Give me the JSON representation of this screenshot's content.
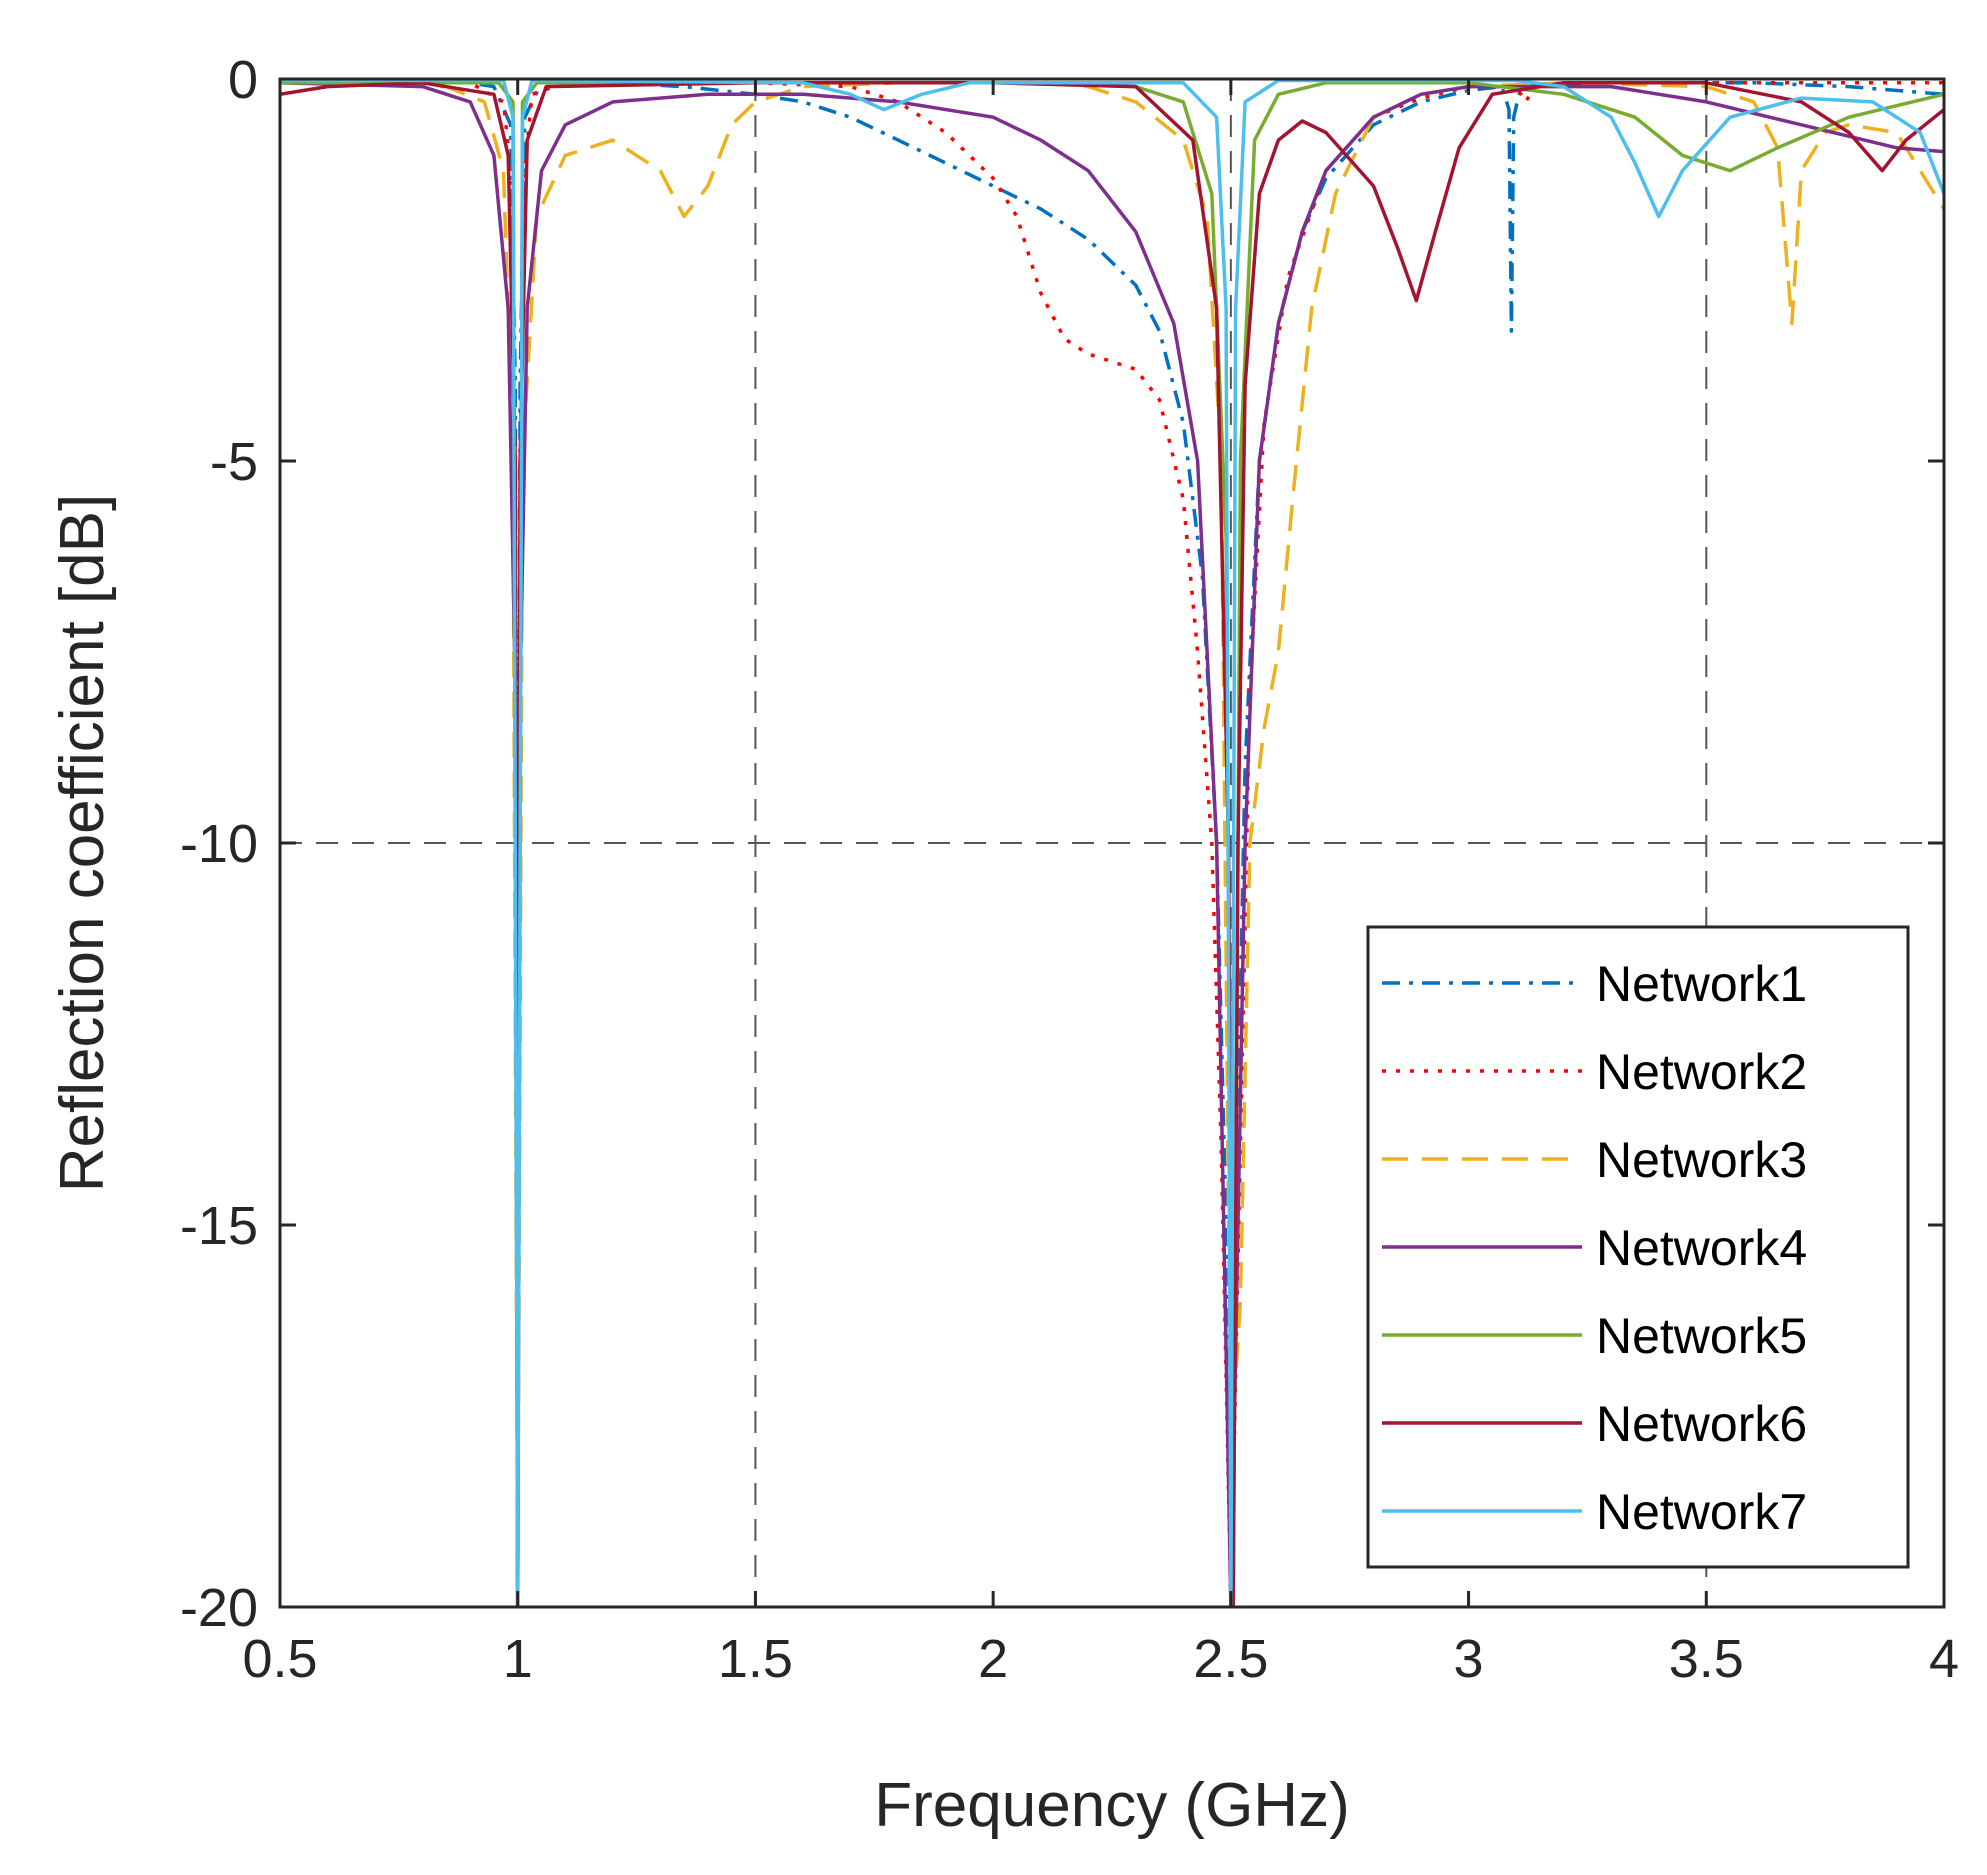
{
  "chart_data": {
    "type": "line",
    "xlabel": "Frequency (GHz)",
    "ylabel": "Reflection coefficient [dB]",
    "xlim": [
      0.5,
      4
    ],
    "ylim": [
      -20,
      0
    ],
    "x_ticks": [
      0.5,
      1,
      1.5,
      2,
      2.5,
      3,
      3.5,
      4
    ],
    "x_tick_labels": [
      "0.5",
      "1",
      "1.5",
      "2",
      "2.5",
      "3",
      "3.5",
      "4"
    ],
    "y_ticks": [
      0,
      -5,
      -10,
      -15,
      -20
    ],
    "y_tick_labels": [
      "0",
      "-5",
      "-10",
      "-15",
      "-20"
    ],
    "reference_lines": [
      {
        "axis": "y",
        "value": -10,
        "style": "dashed",
        "color": "#555555"
      },
      {
        "axis": "x",
        "value": 1.5,
        "style": "dashed",
        "color": "#555555"
      },
      {
        "axis": "x",
        "value": 2.5,
        "style": "dashed",
        "color": "#555555"
      },
      {
        "axis": "x",
        "value": 3.5,
        "style": "dashed",
        "color": "#555555"
      }
    ],
    "legend": {
      "position": "bottom-right"
    },
    "series": [
      {
        "name": "Network1",
        "color": "#0072BD",
        "dash": "dashdot",
        "points": [
          [
            0.5,
            -0.05
          ],
          [
            0.9,
            -0.05
          ],
          [
            0.95,
            -0.1
          ],
          [
            0.985,
            -0.6
          ],
          [
            0.995,
            -4
          ],
          [
            1.0,
            -18
          ],
          [
            1.005,
            -4
          ],
          [
            1.015,
            -0.5
          ],
          [
            1.05,
            -0.05
          ],
          [
            1.2,
            -0.05
          ],
          [
            1.35,
            -0.1
          ],
          [
            1.5,
            -0.2
          ],
          [
            1.6,
            -0.3
          ],
          [
            1.7,
            -0.5
          ],
          [
            1.8,
            -0.8
          ],
          [
            1.9,
            -1.1
          ],
          [
            2.0,
            -1.4
          ],
          [
            2.1,
            -1.7
          ],
          [
            2.2,
            -2.1
          ],
          [
            2.3,
            -2.7
          ],
          [
            2.35,
            -3.3
          ],
          [
            2.4,
            -4.5
          ],
          [
            2.44,
            -6.5
          ],
          [
            2.47,
            -10
          ],
          [
            2.49,
            -15
          ],
          [
            2.5,
            -20
          ],
          [
            2.51,
            -15
          ],
          [
            2.53,
            -9
          ],
          [
            2.56,
            -5
          ],
          [
            2.6,
            -3.2
          ],
          [
            2.65,
            -2.0
          ],
          [
            2.7,
            -1.3
          ],
          [
            2.8,
            -0.6
          ],
          [
            2.9,
            -0.3
          ],
          [
            3.0,
            -0.15
          ],
          [
            3.07,
            -0.1
          ],
          [
            3.085,
            -0.4
          ],
          [
            3.09,
            -3.3
          ],
          [
            3.095,
            -0.5
          ],
          [
            3.11,
            -0.1
          ],
          [
            3.3,
            -0.05
          ],
          [
            3.6,
            -0.05
          ],
          [
            3.8,
            -0.1
          ],
          [
            4.0,
            -0.2
          ]
        ]
      },
      {
        "name": "Network2",
        "color": "#FF0000",
        "dash": "dotted",
        "points": [
          [
            0.5,
            -0.05
          ],
          [
            0.9,
            -0.05
          ],
          [
            0.97,
            -0.3
          ],
          [
            0.99,
            -1.5
          ],
          [
            0.997,
            -8
          ],
          [
            1.0,
            -20
          ],
          [
            1.003,
            -8
          ],
          [
            1.01,
            -1.5
          ],
          [
            1.03,
            -0.2
          ],
          [
            1.1,
            -0.05
          ],
          [
            1.5,
            -0.05
          ],
          [
            1.7,
            -0.1
          ],
          [
            1.8,
            -0.3
          ],
          [
            1.9,
            -0.7
          ],
          [
            2.0,
            -1.3
          ],
          [
            2.05,
            -1.8
          ],
          [
            2.1,
            -2.8
          ],
          [
            2.15,
            -3.4
          ],
          [
            2.2,
            -3.6
          ],
          [
            2.3,
            -3.8
          ],
          [
            2.35,
            -4.2
          ],
          [
            2.4,
            -5.5
          ],
          [
            2.43,
            -7.5
          ],
          [
            2.46,
            -10
          ],
          [
            2.48,
            -14
          ],
          [
            2.5,
            -20
          ],
          [
            2.52,
            -14
          ],
          [
            2.54,
            -8
          ],
          [
            2.57,
            -4.5
          ],
          [
            2.62,
            -2.6
          ],
          [
            2.7,
            -1.2
          ],
          [
            2.8,
            -0.5
          ],
          [
            2.9,
            -0.25
          ],
          [
            3.0,
            -0.1
          ],
          [
            3.1,
            -0.1
          ],
          [
            3.12,
            -0.3
          ],
          [
            3.14,
            -0.1
          ],
          [
            3.3,
            -0.05
          ],
          [
            3.6,
            -0.05
          ],
          [
            4.0,
            -0.05
          ]
        ]
      },
      {
        "name": "Network3",
        "color": "#EDB120",
        "dash": "dashed",
        "points": [
          [
            0.5,
            -0.05
          ],
          [
            0.85,
            -0.1
          ],
          [
            0.93,
            -0.3
          ],
          [
            0.97,
            -1.2
          ],
          [
            0.99,
            -5
          ],
          [
            1.0,
            -20
          ],
          [
            1.01,
            -5
          ],
          [
            1.04,
            -1.8
          ],
          [
            1.1,
            -1.0
          ],
          [
            1.2,
            -0.8
          ],
          [
            1.3,
            -1.2
          ],
          [
            1.35,
            -1.8
          ],
          [
            1.4,
            -1.4
          ],
          [
            1.45,
            -0.6
          ],
          [
            1.5,
            -0.3
          ],
          [
            1.6,
            -0.1
          ],
          [
            1.8,
            -0.05
          ],
          [
            2.1,
            -0.05
          ],
          [
            2.2,
            -0.1
          ],
          [
            2.3,
            -0.3
          ],
          [
            2.4,
            -0.8
          ],
          [
            2.45,
            -1.8
          ],
          [
            2.48,
            -5
          ],
          [
            2.5,
            -18
          ],
          [
            2.52,
            -16
          ],
          [
            2.54,
            -10
          ],
          [
            2.57,
            -8.5
          ],
          [
            2.6,
            -7.5
          ],
          [
            2.63,
            -5.5
          ],
          [
            2.67,
            -3
          ],
          [
            2.72,
            -1.5
          ],
          [
            2.8,
            -0.5
          ],
          [
            2.9,
            -0.2
          ],
          [
            3.0,
            -0.1
          ],
          [
            3.2,
            -0.05
          ],
          [
            3.5,
            -0.1
          ],
          [
            3.6,
            -0.3
          ],
          [
            3.65,
            -0.9
          ],
          [
            3.68,
            -3.2
          ],
          [
            3.7,
            -1.2
          ],
          [
            3.75,
            -0.7
          ],
          [
            3.8,
            -0.6
          ],
          [
            3.9,
            -0.7
          ],
          [
            4.0,
            -1.7
          ]
        ]
      },
      {
        "name": "Network4",
        "color": "#7E2F8E",
        "dash": "solid",
        "points": [
          [
            0.5,
            -0.05
          ],
          [
            0.8,
            -0.1
          ],
          [
            0.9,
            -0.3
          ],
          [
            0.95,
            -1.0
          ],
          [
            0.98,
            -3
          ],
          [
            0.995,
            -8
          ],
          [
            1.0,
            -20
          ],
          [
            1.005,
            -8
          ],
          [
            1.02,
            -3
          ],
          [
            1.05,
            -1.2
          ],
          [
            1.1,
            -0.6
          ],
          [
            1.2,
            -0.3
          ],
          [
            1.4,
            -0.2
          ],
          [
            1.6,
            -0.2
          ],
          [
            1.8,
            -0.3
          ],
          [
            2.0,
            -0.5
          ],
          [
            2.1,
            -0.8
          ],
          [
            2.2,
            -1.2
          ],
          [
            2.3,
            -2.0
          ],
          [
            2.38,
            -3.2
          ],
          [
            2.43,
            -5
          ],
          [
            2.47,
            -10
          ],
          [
            2.5,
            -20
          ],
          [
            2.53,
            -10
          ],
          [
            2.56,
            -5
          ],
          [
            2.6,
            -3.2
          ],
          [
            2.65,
            -2.0
          ],
          [
            2.7,
            -1.2
          ],
          [
            2.8,
            -0.5
          ],
          [
            2.9,
            -0.2
          ],
          [
            3.0,
            -0.1
          ],
          [
            3.3,
            -0.1
          ],
          [
            3.5,
            -0.3
          ],
          [
            3.7,
            -0.6
          ],
          [
            3.9,
            -0.9
          ],
          [
            4.0,
            -0.95
          ]
        ]
      },
      {
        "name": "Network5",
        "color": "#77AC30",
        "dash": "solid",
        "points": [
          [
            0.5,
            -0.05
          ],
          [
            0.96,
            -0.05
          ],
          [
            0.99,
            -0.3
          ],
          [
            1.0,
            -20
          ],
          [
            1.01,
            -0.3
          ],
          [
            1.04,
            -0.05
          ],
          [
            2.0,
            -0.05
          ],
          [
            2.3,
            -0.1
          ],
          [
            2.4,
            -0.3
          ],
          [
            2.46,
            -1.5
          ],
          [
            2.49,
            -6
          ],
          [
            2.505,
            -20
          ],
          [
            2.52,
            -5
          ],
          [
            2.55,
            -0.8
          ],
          [
            2.6,
            -0.2
          ],
          [
            2.7,
            -0.05
          ],
          [
            3.0,
            -0.05
          ],
          [
            3.2,
            -0.2
          ],
          [
            3.35,
            -0.5
          ],
          [
            3.45,
            -1.0
          ],
          [
            3.55,
            -1.2
          ],
          [
            3.65,
            -0.9
          ],
          [
            3.8,
            -0.5
          ],
          [
            4.0,
            -0.2
          ]
        ]
      },
      {
        "name": "Network6",
        "color": "#A2142F",
        "dash": "solid",
        "points": [
          [
            0.5,
            -0.2
          ],
          [
            0.6,
            -0.1
          ],
          [
            0.8,
            -0.05
          ],
          [
            0.95,
            -0.2
          ],
          [
            0.98,
            -1
          ],
          [
            0.995,
            -5
          ],
          [
            1.0,
            -20
          ],
          [
            1.005,
            -5
          ],
          [
            1.02,
            -0.8
          ],
          [
            1.06,
            -0.1
          ],
          [
            1.5,
            -0.05
          ],
          [
            2.0,
            -0.05
          ],
          [
            2.3,
            -0.1
          ],
          [
            2.42,
            -0.8
          ],
          [
            2.47,
            -3
          ],
          [
            2.495,
            -10
          ],
          [
            2.505,
            -20
          ],
          [
            2.515,
            -10
          ],
          [
            2.53,
            -4
          ],
          [
            2.56,
            -1.5
          ],
          [
            2.6,
            -0.8
          ],
          [
            2.65,
            -0.55
          ],
          [
            2.7,
            -0.7
          ],
          [
            2.8,
            -1.4
          ],
          [
            2.85,
            -2.2
          ],
          [
            2.89,
            -2.9
          ],
          [
            2.93,
            -2.0
          ],
          [
            2.98,
            -0.9
          ],
          [
            3.05,
            -0.2
          ],
          [
            3.2,
            -0.05
          ],
          [
            3.5,
            -0.05
          ],
          [
            3.7,
            -0.3
          ],
          [
            3.8,
            -0.7
          ],
          [
            3.87,
            -1.2
          ],
          [
            3.92,
            -0.8
          ],
          [
            4.0,
            -0.4
          ]
        ]
      },
      {
        "name": "Network7",
        "color": "#4DBEEE",
        "dash": "solid",
        "points": [
          [
            0.5,
            -0.02
          ],
          [
            0.97,
            -0.02
          ],
          [
            0.99,
            -0.5
          ],
          [
            1.0,
            -20
          ],
          [
            1.01,
            -0.5
          ],
          [
            1.03,
            -0.02
          ],
          [
            1.6,
            -0.05
          ],
          [
            1.7,
            -0.2
          ],
          [
            1.77,
            -0.4
          ],
          [
            1.85,
            -0.2
          ],
          [
            1.95,
            -0.05
          ],
          [
            2.4,
            -0.05
          ],
          [
            2.47,
            -0.5
          ],
          [
            2.49,
            -3
          ],
          [
            2.5,
            -20
          ],
          [
            2.51,
            -3
          ],
          [
            2.53,
            -0.3
          ],
          [
            2.6,
            -0.02
          ],
          [
            3.1,
            -0.02
          ],
          [
            3.2,
            -0.1
          ],
          [
            3.3,
            -0.5
          ],
          [
            3.35,
            -1.1
          ],
          [
            3.4,
            -1.8
          ],
          [
            3.45,
            -1.2
          ],
          [
            3.55,
            -0.5
          ],
          [
            3.7,
            -0.25
          ],
          [
            3.85,
            -0.3
          ],
          [
            3.95,
            -0.7
          ],
          [
            4.0,
            -1.5
          ]
        ]
      }
    ]
  }
}
